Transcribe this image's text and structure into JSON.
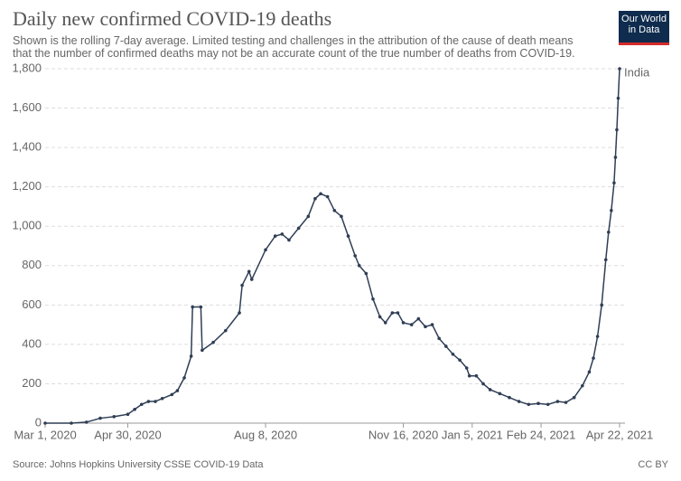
{
  "chart_data": {
    "type": "line",
    "title": "Daily new confirmed COVID-19 deaths",
    "subtitle": "Shown is the rolling 7-day average. Limited testing and challenges in the attribution of the cause of death means that the number of confirmed deaths may not be an accurate count of the true number of deaths from COVID-19.",
    "logo": "Our World in Data",
    "source": "Source: Johns Hopkins University CSSE COVID-19 Data",
    "license": "CC BY",
    "x": [
      "Mar 1, 2020",
      "Mar 20, 2020",
      "Mar 31, 2020",
      "Apr 10, 2020",
      "Apr 20, 2020",
      "Apr 30, 2020",
      "May 5, 2020",
      "May 10, 2020",
      "May 15, 2020",
      "May 20, 2020",
      "May 25, 2020",
      "Jun 1, 2020",
      "Jun 5, 2020",
      "Jun 10, 2020",
      "Jun 15, 2020",
      "Jun 16, 2020",
      "Jun 22, 2020",
      "Jun 23, 2020",
      "Jul 1, 2020",
      "Jul 10, 2020",
      "Jul 20, 2020",
      "Jul 22, 2020",
      "Jul 27, 2020",
      "Jul 29, 2020",
      "Aug 8, 2020",
      "Aug 15, 2020",
      "Aug 20, 2020",
      "Aug 25, 2020",
      "Sep 1, 2020",
      "Sep 8, 2020",
      "Sep 13, 2020",
      "Sep 17, 2020",
      "Sep 22, 2020",
      "Sep 27, 2020",
      "Oct 2, 2020",
      "Oct 7, 2020",
      "Oct 12, 2020",
      "Oct 15, 2020",
      "Oct 20, 2020",
      "Oct 25, 2020",
      "Oct 30, 2020",
      "Nov 3, 2020",
      "Nov 8, 2020",
      "Nov 12, 2020",
      "Nov 16, 2020",
      "Nov 22, 2020",
      "Nov 27, 2020",
      "Dec 2, 2020",
      "Dec 7, 2020",
      "Dec 12, 2020",
      "Dec 17, 2020",
      "Dec 22, 2020",
      "Dec 27, 2020",
      "Jan 1, 2021",
      "Jan 3, 2021",
      "Jan 8, 2021",
      "Jan 13, 2021",
      "Jan 18, 2021",
      "Jan 25, 2021",
      "Feb 1, 2021",
      "Feb 8, 2021",
      "Feb 15, 2021",
      "Feb 22, 2021",
      "Mar 1, 2021",
      "Mar 8, 2021",
      "Mar 14, 2021",
      "Mar 20, 2021",
      "Mar 26, 2021",
      "Mar 31, 2021",
      "Apr 3, 2021",
      "Apr 6, 2021",
      "Apr 9, 2021",
      "Apr 12, 2021",
      "Apr 14, 2021",
      "Apr 16, 2021",
      "Apr 18, 2021",
      "Apr 19, 2021",
      "Apr 20, 2021",
      "Apr 21, 2021",
      "Apr 22, 2021"
    ],
    "series": [
      {
        "name": "India",
        "color": "#2f3e55",
        "values": [
          0,
          0,
          5,
          25,
          33,
          45,
          70,
          95,
          110,
          110,
          125,
          145,
          165,
          230,
          340,
          590,
          590,
          370,
          410,
          470,
          560,
          700,
          770,
          730,
          880,
          950,
          960,
          930,
          990,
          1050,
          1140,
          1165,
          1150,
          1080,
          1050,
          950,
          850,
          800,
          760,
          630,
          540,
          510,
          560,
          560,
          510,
          500,
          530,
          490,
          500,
          430,
          390,
          350,
          320,
          280,
          240,
          240,
          200,
          170,
          150,
          130,
          110,
          95,
          100,
          95,
          110,
          105,
          130,
          190,
          260,
          330,
          440,
          600,
          830,
          970,
          1080,
          1220,
          1350,
          1490,
          1650,
          1800
        ]
      }
    ],
    "xlim": [
      "Mar 1, 2020",
      "Apr 22, 2021"
    ],
    "xticks": [
      "Mar 1, 2020",
      "Apr 30, 2020",
      "Aug 8, 2020",
      "Nov 16, 2020",
      "Jan 5, 2021",
      "Feb 24, 2021",
      "Apr 22, 2021"
    ],
    "ylim": [
      0,
      1800
    ],
    "yticks": [
      0,
      200,
      400,
      600,
      800,
      {
        "value": 1000,
        "label": "1,000"
      },
      {
        "value": 1200,
        "label": "1,200"
      },
      {
        "value": 1400,
        "label": "1,400"
      },
      {
        "value": 1600,
        "label": "1,600"
      },
      {
        "value": 1800,
        "label": "1,800"
      }
    ],
    "grid": true
  }
}
